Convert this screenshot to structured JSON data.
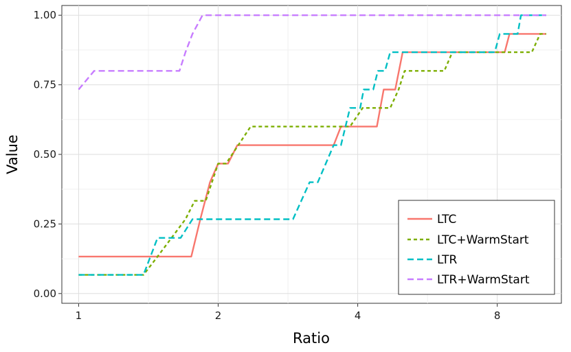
{
  "chart_data": {
    "type": "line",
    "title": "",
    "xlabel": "Ratio",
    "ylabel": "Value",
    "x_scale": "log2",
    "xlim": [
      0.92,
      11.0
    ],
    "ylim": [
      -0.035,
      1.035
    ],
    "x_ticks": [
      {
        "value": 1,
        "label": "1"
      },
      {
        "value": 2,
        "label": "2"
      },
      {
        "value": 4,
        "label": "4"
      },
      {
        "value": 8,
        "label": "8"
      }
    ],
    "y_ticks": [
      {
        "value": 0,
        "label": "0.00"
      },
      {
        "value": 0.25,
        "label": "0.25"
      },
      {
        "value": 0.5,
        "label": "0.50"
      },
      {
        "value": 0.75,
        "label": "0.75"
      },
      {
        "value": 1,
        "label": "1.00"
      }
    ],
    "grid": true,
    "legend_position": "bottom-right",
    "series": [
      {
        "name": "LTC",
        "color": "#F8766D",
        "dash": "solid",
        "points": [
          [
            1.0,
            0.133
          ],
          [
            1.75,
            0.133
          ],
          [
            1.83,
            0.267
          ],
          [
            1.92,
            0.4
          ],
          [
            2.0,
            0.467
          ],
          [
            2.1,
            0.467
          ],
          [
            2.2,
            0.533
          ],
          [
            3.55,
            0.533
          ],
          [
            3.68,
            0.6
          ],
          [
            4.4,
            0.6
          ],
          [
            4.55,
            0.733
          ],
          [
            4.82,
            0.733
          ],
          [
            5.0,
            0.867
          ],
          [
            8.3,
            0.867
          ],
          [
            8.5,
            0.933
          ],
          [
            10.2,
            0.933
          ]
        ]
      },
      {
        "name": "LTC+WarmStart",
        "color": "#7CAE00",
        "dash": "5,4",
        "points": [
          [
            1.0,
            0.067
          ],
          [
            1.38,
            0.067
          ],
          [
            1.48,
            0.133
          ],
          [
            1.7,
            0.267
          ],
          [
            1.78,
            0.333
          ],
          [
            1.88,
            0.333
          ],
          [
            2.0,
            0.467
          ],
          [
            2.08,
            0.467
          ],
          [
            2.35,
            0.6
          ],
          [
            3.85,
            0.6
          ],
          [
            4.1,
            0.667
          ],
          [
            4.7,
            0.667
          ],
          [
            4.9,
            0.733
          ],
          [
            5.05,
            0.8
          ],
          [
            6.15,
            0.8
          ],
          [
            6.4,
            0.867
          ],
          [
            9.5,
            0.867
          ],
          [
            9.9,
            0.933
          ],
          [
            10.2,
            0.933
          ]
        ]
      },
      {
        "name": "LTR",
        "color": "#00BFC4",
        "dash": "9,5",
        "points": [
          [
            1.0,
            0.067
          ],
          [
            1.38,
            0.067
          ],
          [
            1.48,
            0.2
          ],
          [
            1.66,
            0.2
          ],
          [
            1.76,
            0.267
          ],
          [
            2.9,
            0.267
          ],
          [
            3.15,
            0.4
          ],
          [
            3.28,
            0.4
          ],
          [
            3.55,
            0.533
          ],
          [
            3.68,
            0.533
          ],
          [
            3.85,
            0.667
          ],
          [
            4.05,
            0.667
          ],
          [
            4.12,
            0.733
          ],
          [
            4.32,
            0.733
          ],
          [
            4.42,
            0.8
          ],
          [
            4.58,
            0.8
          ],
          [
            4.7,
            0.867
          ],
          [
            7.9,
            0.867
          ],
          [
            8.1,
            0.933
          ],
          [
            8.85,
            0.933
          ],
          [
            9.0,
            1.0
          ],
          [
            10.2,
            1.0
          ]
        ]
      },
      {
        "name": "LTR+WarmStart",
        "color": "#C77CFF",
        "dash": "9,5",
        "points": [
          [
            1.0,
            0.733
          ],
          [
            1.08,
            0.8
          ],
          [
            1.65,
            0.8
          ],
          [
            1.7,
            0.867
          ],
          [
            1.76,
            0.933
          ],
          [
            1.85,
            1.0
          ],
          [
            10.2,
            1.0
          ]
        ]
      }
    ]
  }
}
